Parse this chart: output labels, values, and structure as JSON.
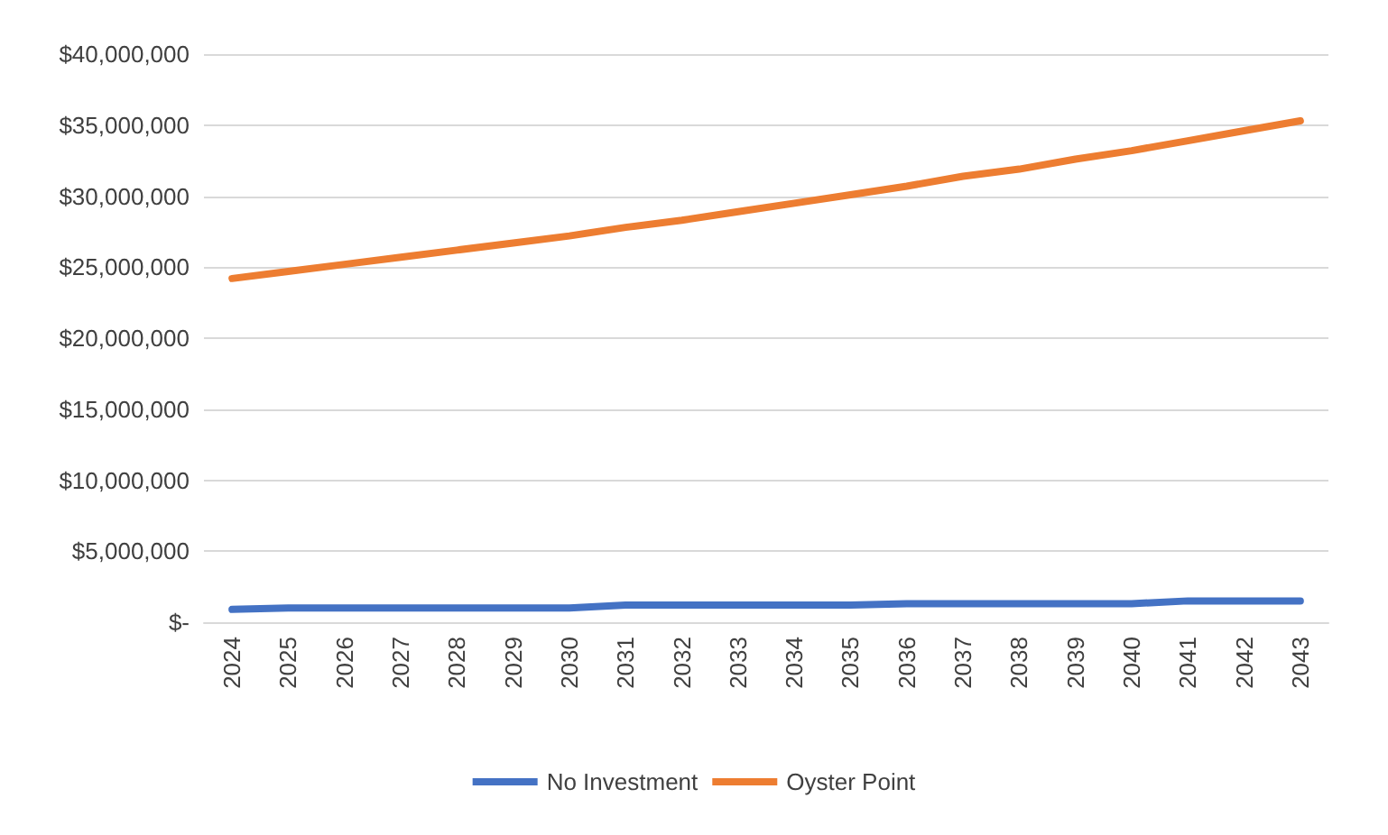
{
  "chart_data": {
    "type": "line",
    "categories": [
      "2024",
      "2025",
      "2026",
      "2027",
      "2028",
      "2029",
      "2030",
      "2031",
      "2032",
      "2033",
      "2034",
      "2035",
      "2036",
      "2037",
      "2038",
      "2039",
      "2040",
      "2041",
      "2042",
      "2043"
    ],
    "series": [
      {
        "name": "No Investment",
        "color": "#4472c4",
        "values": [
          900000,
          1000000,
          1000000,
          1000000,
          1000000,
          1000000,
          1000000,
          1200000,
          1200000,
          1200000,
          1200000,
          1200000,
          1300000,
          1300000,
          1300000,
          1300000,
          1300000,
          1500000,
          1500000,
          1500000
        ]
      },
      {
        "name": "Oyster Point",
        "color": "#ed7d31",
        "values": [
          24200000,
          24700000,
          25200000,
          25700000,
          26200000,
          26700000,
          27200000,
          27800000,
          28300000,
          28900000,
          29500000,
          30100000,
          30700000,
          31400000,
          31900000,
          32600000,
          33200000,
          33900000,
          34600000,
          35300000
        ]
      }
    ],
    "ylim": [
      0,
      40000000
    ],
    "yticks": [
      {
        "value": 0,
        "label": "$-"
      },
      {
        "value": 5000000,
        "label": "$5,000,000"
      },
      {
        "value": 10000000,
        "label": "$10,000,000"
      },
      {
        "value": 15000000,
        "label": "$15,000,000"
      },
      {
        "value": 20000000,
        "label": "$20,000,000"
      },
      {
        "value": 25000000,
        "label": "$25,000,000"
      },
      {
        "value": 30000000,
        "label": "$30,000,000"
      },
      {
        "value": 35000000,
        "label": "$35,000,000"
      },
      {
        "value": 40000000,
        "label": "$40,000,000"
      }
    ],
    "grid": "y",
    "legend": "bottom",
    "marker": "none",
    "line_style": "solid"
  }
}
